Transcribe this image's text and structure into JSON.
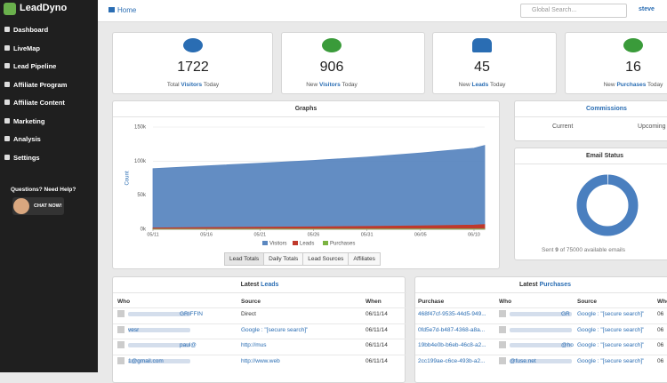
{
  "sidebar": {
    "brand": "LeadDyno",
    "menu": [
      "Dashboard",
      "LiveMap",
      "Lead Pipeline",
      "Affiliate Program",
      "Affiliate Content",
      "Marketing",
      "Analysis",
      "Settings"
    ],
    "help": "Questions? Need Help?",
    "chat": "CHAT NOW!"
  },
  "topbar": {
    "breadcrumb": "Home",
    "search_placeholder": "Global Search...",
    "user": "steve"
  },
  "stats": [
    {
      "value": 1722,
      "pre": "Total",
      "em": "Visitors",
      "post": "Today"
    },
    {
      "value": 906,
      "pre": "New",
      "em": "Visitors",
      "post": "Today"
    },
    {
      "value": 45,
      "pre": "New",
      "em": "Leads",
      "post": "Today"
    },
    {
      "value": 16,
      "pre": "New",
      "em": "Purchases",
      "post": "Today"
    }
  ],
  "graphs": {
    "title": "Graphs",
    "tabs": [
      "Lead Totals",
      "Daily Totals",
      "Lead Sources",
      "Affiliates"
    ]
  },
  "chart_data": {
    "type": "area",
    "y_label": "Count",
    "x": [
      "05/11",
      "05/16",
      "05/21",
      "05/26",
      "05/31",
      "06/05",
      "06/10",
      "06/11"
    ],
    "xlim": [
      "05/11",
      "06/11"
    ],
    "xticks": [
      "05/11",
      "05/16",
      "05/21",
      "05/26",
      "05/31",
      "06/05",
      "06/10"
    ],
    "ylim": [
      0,
      150000
    ],
    "yticks": [
      {
        "value": 0,
        "label": "0k"
      },
      {
        "value": 50000,
        "label": "50k"
      },
      {
        "value": 100000,
        "label": "100k"
      },
      {
        "value": 150000,
        "label": "150k"
      }
    ],
    "grid": true,
    "series": [
      {
        "name": "Visitors",
        "color": "#5b87c0",
        "values": [
          89000,
          93000,
          97000,
          101000,
          106000,
          112000,
          119000,
          123000
        ]
      },
      {
        "name": "Leads",
        "color": "#c0392b",
        "values": [
          2000,
          2500,
          3000,
          3500,
          4200,
          5000,
          6200,
          7000
        ]
      },
      {
        "name": "Purchases",
        "color": "#7cb342",
        "values": [
          300,
          350,
          400,
          450,
          500,
          550,
          600,
          650
        ]
      }
    ]
  },
  "commissions": {
    "title": "Commissions",
    "columns": [
      "Current",
      "Upcoming"
    ]
  },
  "email_status": {
    "title": "Email Status",
    "sent_pre": "Sent",
    "sent": 9,
    "of": "of",
    "available": 75000,
    "post": "available emails"
  },
  "leads": {
    "pre": "Latest",
    "em": "Leads",
    "columns": [
      "Who",
      "Source",
      "When"
    ],
    "rows": [
      [
        "GRIFFIN",
        "Direct",
        "06/11/14"
      ],
      [
        "vesr",
        "Google : \"[secure search]\"",
        "06/11/14"
      ],
      [
        "paul@",
        "http://mus",
        "06/11/14"
      ],
      [
        "1@gmail.com",
        "http://www.web",
        "06/11/14"
      ]
    ]
  },
  "purchases": {
    "pre": "Latest",
    "em": "Purchases",
    "columns": [
      "Purchase",
      "Who",
      "Source",
      "When"
    ],
    "rows": [
      [
        "468f47cf-9535-44d5-949...",
        "GR",
        "Google : \"[secure search]\"",
        "06"
      ],
      [
        "0fd5e7d-b487-4368-a8a...",
        null,
        "Google : \"[secure search]\"",
        "06"
      ],
      [
        "19bb4e0b-b6eb-46c8-a2...",
        "@hotmail.com",
        "Google : \"[secure search]\"",
        "06"
      ],
      [
        "2cc199ae-c6ce-493b-a2...",
        "@fuse.net",
        "Google : \"[secure search]\"",
        "06"
      ]
    ]
  }
}
